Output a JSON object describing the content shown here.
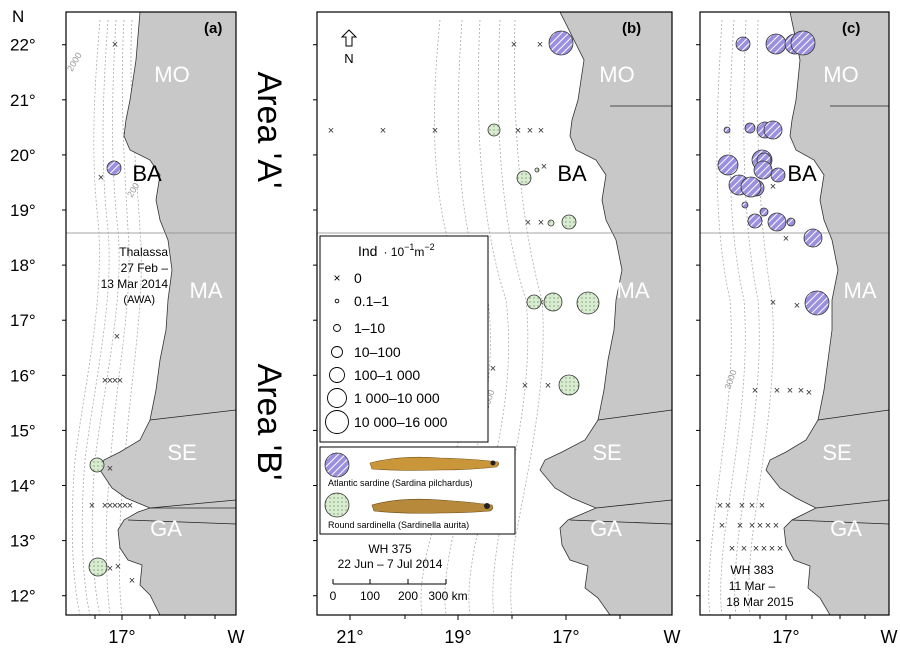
{
  "axes": {
    "north_label": "N",
    "west_label": "W",
    "lat_ticks": [
      "12°",
      "13°",
      "14°",
      "15°",
      "16°",
      "17°",
      "18°",
      "19°",
      "20°",
      "21°",
      "22°"
    ],
    "lon_ticks_a": [
      "17°"
    ],
    "lon_ticks_b": [
      "21°",
      "19°",
      "17°"
    ],
    "lon_ticks_c": [
      "17°"
    ]
  },
  "panels": {
    "a": {
      "tag": "(a)",
      "cruise": [
        "Thalassa",
        "27 Feb –",
        "13 Mar 2014",
        "(AWA)"
      ]
    },
    "b": {
      "tag": "(b)",
      "cruise": [
        "WH 375",
        "22 Jun – 7 Jul 2014"
      ]
    },
    "c": {
      "tag": "(c)",
      "cruise": [
        "WH 383",
        "11 Mar –",
        "18 Mar 2015"
      ]
    }
  },
  "regions": [
    "MO",
    "BA",
    "MA",
    "SE",
    "GA"
  ],
  "areas": {
    "a": "Area 'A'",
    "b": "Area 'B'"
  },
  "depth_labels": {
    "d2000": "2000",
    "d200": "200",
    "d3000": "3000"
  },
  "north_arrow": "N",
  "legend": {
    "title_prefix": "Ind",
    "title_unit": "· 10",
    "title_exp1": "−1",
    "title_m": "m",
    "title_exp2": "−2",
    "classes": [
      "0",
      "0.1–1",
      "1–10",
      "10–100",
      "100–1 000",
      "1 000–10 000",
      "10 000–16 000"
    ]
  },
  "species": {
    "sardine": "Atlantic sardine (Sardina pilchardus)",
    "sardinella": "Round sardinella (Sardinella aurita)"
  },
  "scalebar": {
    "ticks": [
      "0",
      "100",
      "200",
      "300 km"
    ]
  },
  "colors": {
    "sardine": "#8c7fd6",
    "sardinella": "#cfe6c4",
    "land": "#c8c8c8"
  }
}
